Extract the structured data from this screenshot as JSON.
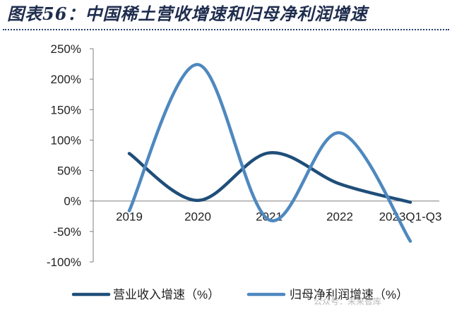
{
  "title": "图表56：中国稀土营收增速和归母净利润增速",
  "watermark": "公众号：未来智库",
  "chart_data": {
    "type": "line",
    "categories": [
      "2019",
      "2020",
      "2021",
      "2022",
      "2023Q1-Q3"
    ],
    "series": [
      {
        "name": "营业收入增速（%）",
        "values": [
          78,
          1,
          79,
          28,
          -2
        ],
        "color": "#1f4e79"
      },
      {
        "name": "归母净利润增速（%）",
        "values": [
          -16,
          224,
          -31,
          112,
          -66
        ],
        "color": "#4e88bf"
      }
    ],
    "yticks": [
      "250%",
      "200%",
      "150%",
      "100%",
      "50%",
      "0%",
      "-50%",
      "-100%"
    ],
    "ylim": [
      -100,
      250
    ],
    "legend_position": "bottom"
  }
}
